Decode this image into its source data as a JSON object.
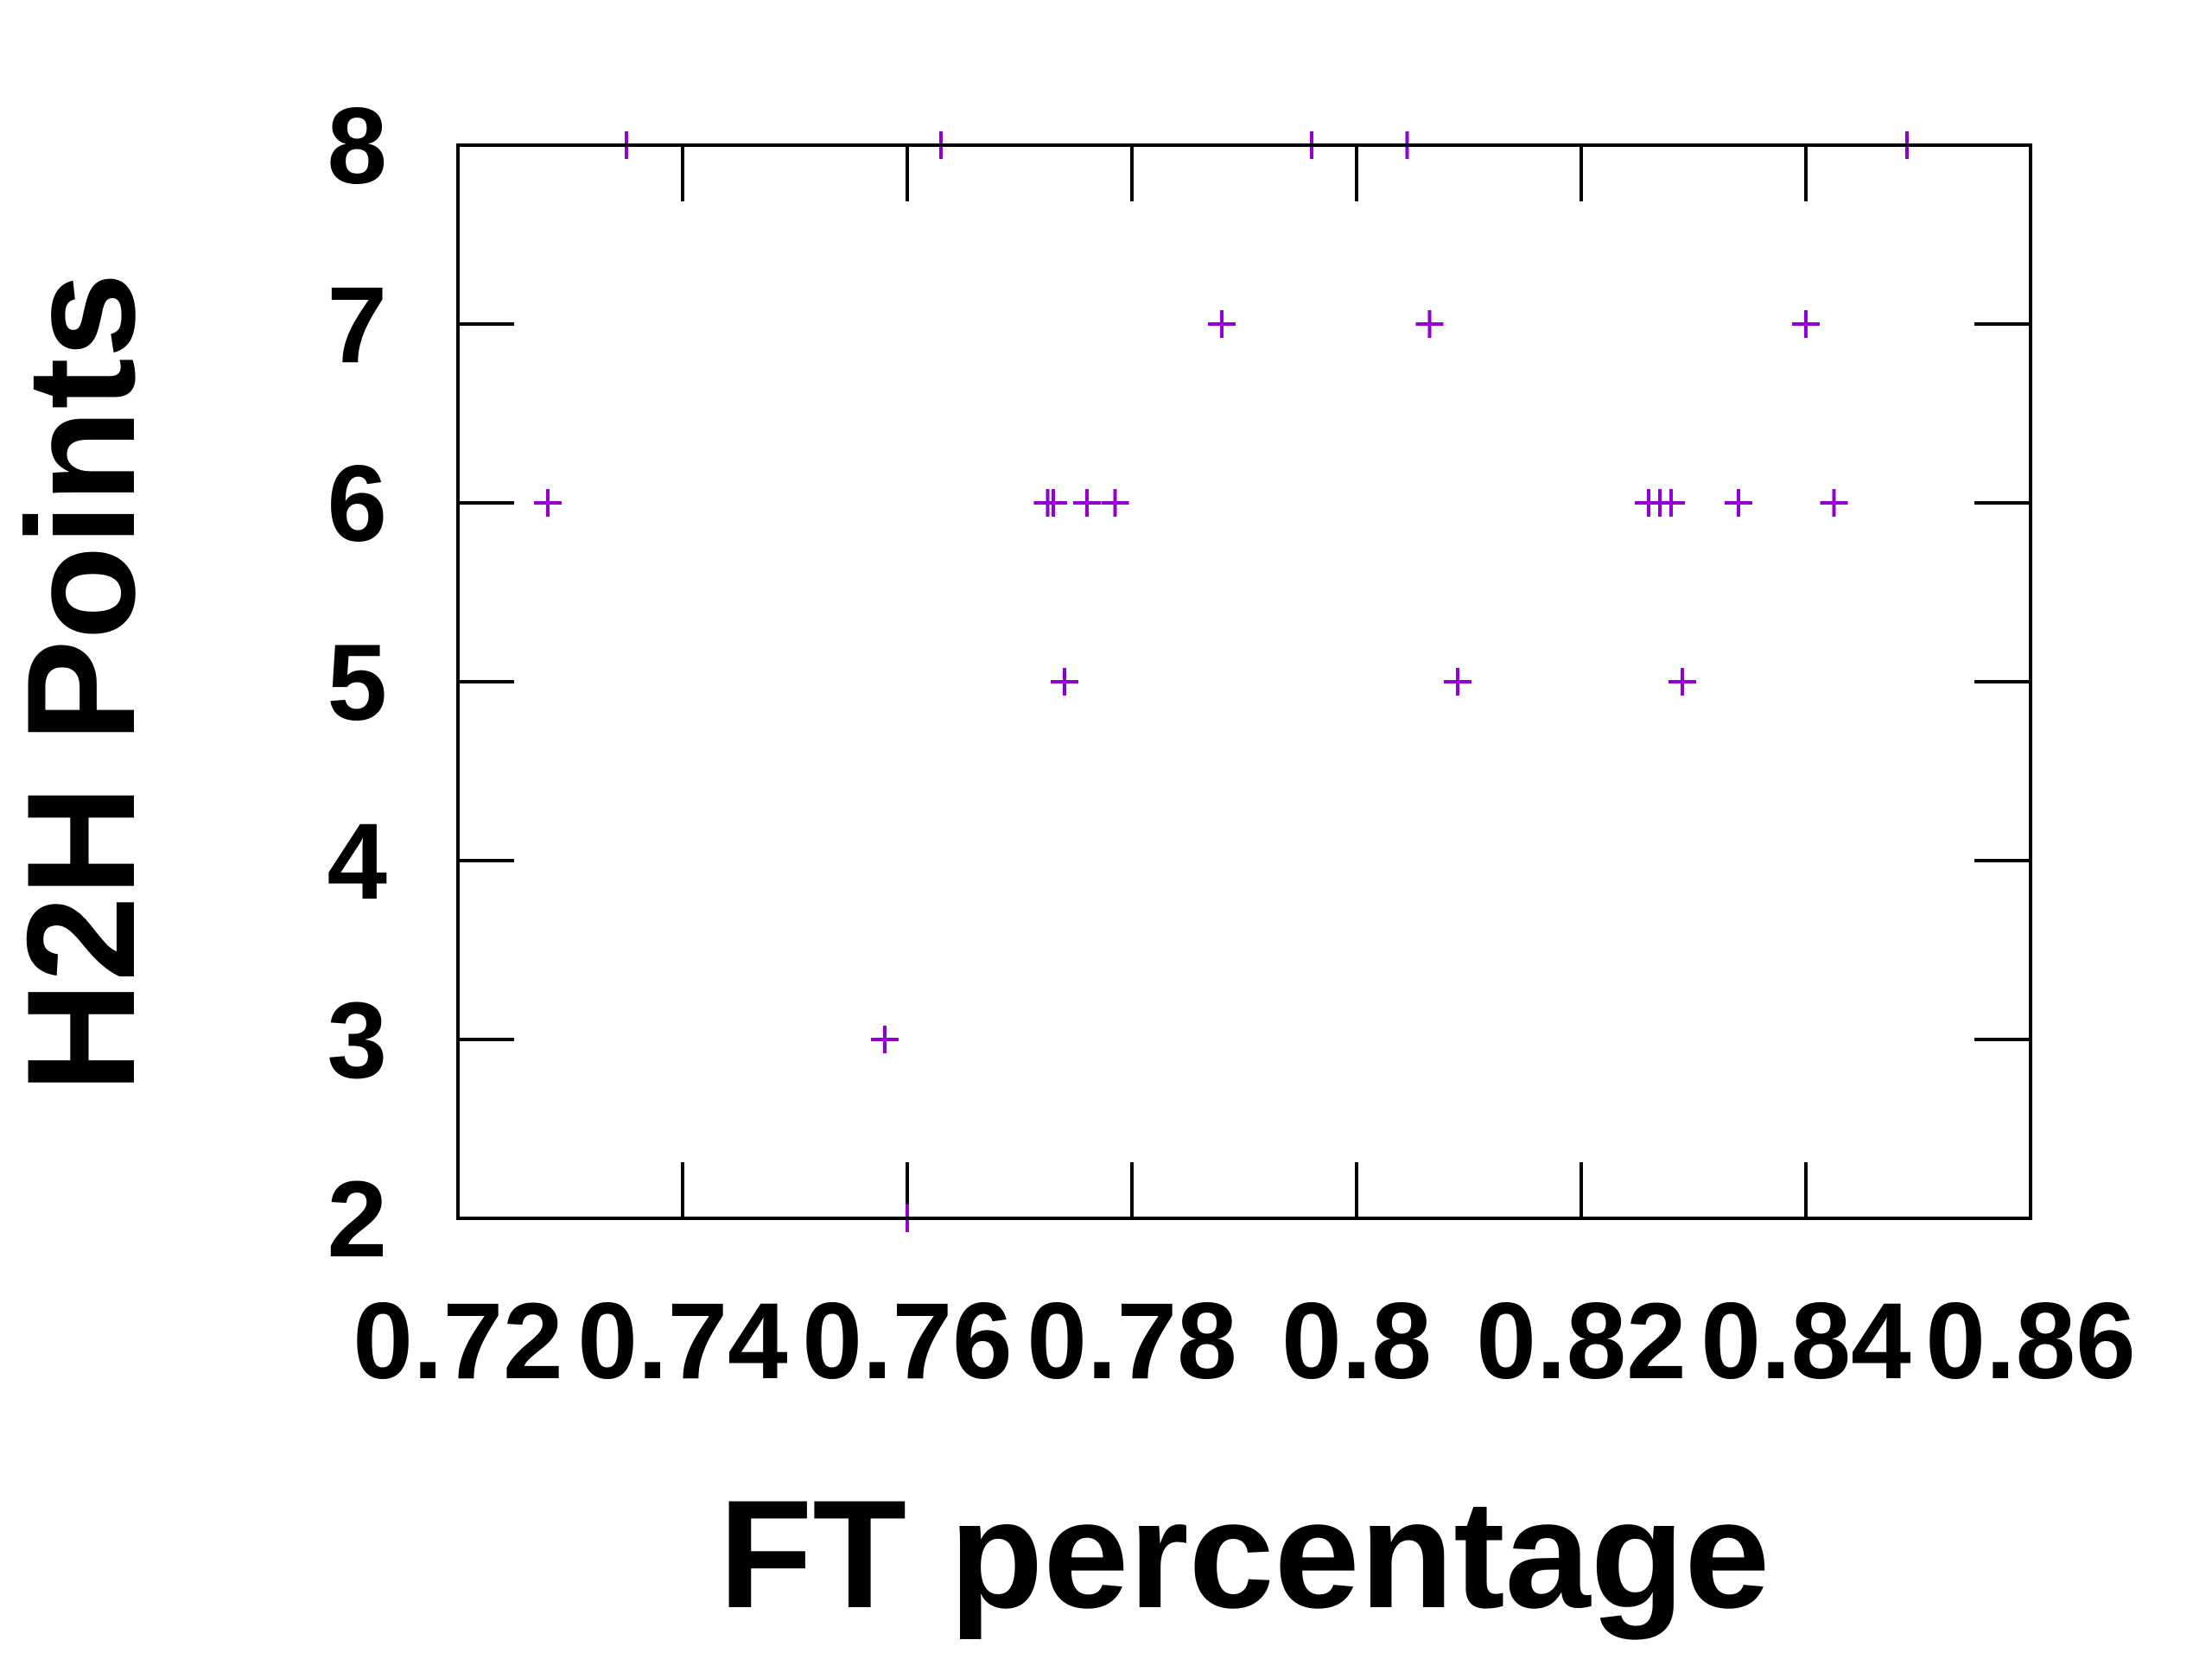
{
  "chart_data": {
    "type": "scatter",
    "title": "",
    "xlabel": "FT percentage",
    "ylabel": "H2H Points",
    "xlim": [
      0.72,
      0.86
    ],
    "ylim": [
      2,
      8
    ],
    "x_ticks": [
      0.72,
      0.74,
      0.76,
      0.78,
      0.8,
      0.82,
      0.84,
      0.86
    ],
    "x_tick_labels": [
      "0.72",
      "0.74",
      "0.76",
      "0.78",
      "0.8",
      "0.82",
      "0.84",
      "0.86"
    ],
    "y_ticks": [
      2,
      3,
      4,
      5,
      6,
      7,
      8
    ],
    "y_tick_labels": [
      "2",
      "3",
      "4",
      "5",
      "6",
      "7",
      "8"
    ],
    "grid": false,
    "legend": false,
    "marker": "plus",
    "marker_color": "#9400d3",
    "points": [
      {
        "x": 0.728,
        "y": 6
      },
      {
        "x": 0.735,
        "y": 8
      },
      {
        "x": 0.758,
        "y": 3
      },
      {
        "x": 0.76,
        "y": 2
      },
      {
        "x": 0.763,
        "y": 8
      },
      {
        "x": 0.7725,
        "y": 6
      },
      {
        "x": 0.773,
        "y": 6
      },
      {
        "x": 0.774,
        "y": 5
      },
      {
        "x": 0.776,
        "y": 6
      },
      {
        "x": 0.7785,
        "y": 6
      },
      {
        "x": 0.788,
        "y": 7
      },
      {
        "x": 0.796,
        "y": 8
      },
      {
        "x": 0.8045,
        "y": 8
      },
      {
        "x": 0.8065,
        "y": 7
      },
      {
        "x": 0.809,
        "y": 5
      },
      {
        "x": 0.826,
        "y": 6
      },
      {
        "x": 0.827,
        "y": 6
      },
      {
        "x": 0.828,
        "y": 6
      },
      {
        "x": 0.829,
        "y": 5
      },
      {
        "x": 0.834,
        "y": 6
      },
      {
        "x": 0.84,
        "y": 7
      },
      {
        "x": 0.8425,
        "y": 6
      },
      {
        "x": 0.849,
        "y": 8
      }
    ]
  }
}
